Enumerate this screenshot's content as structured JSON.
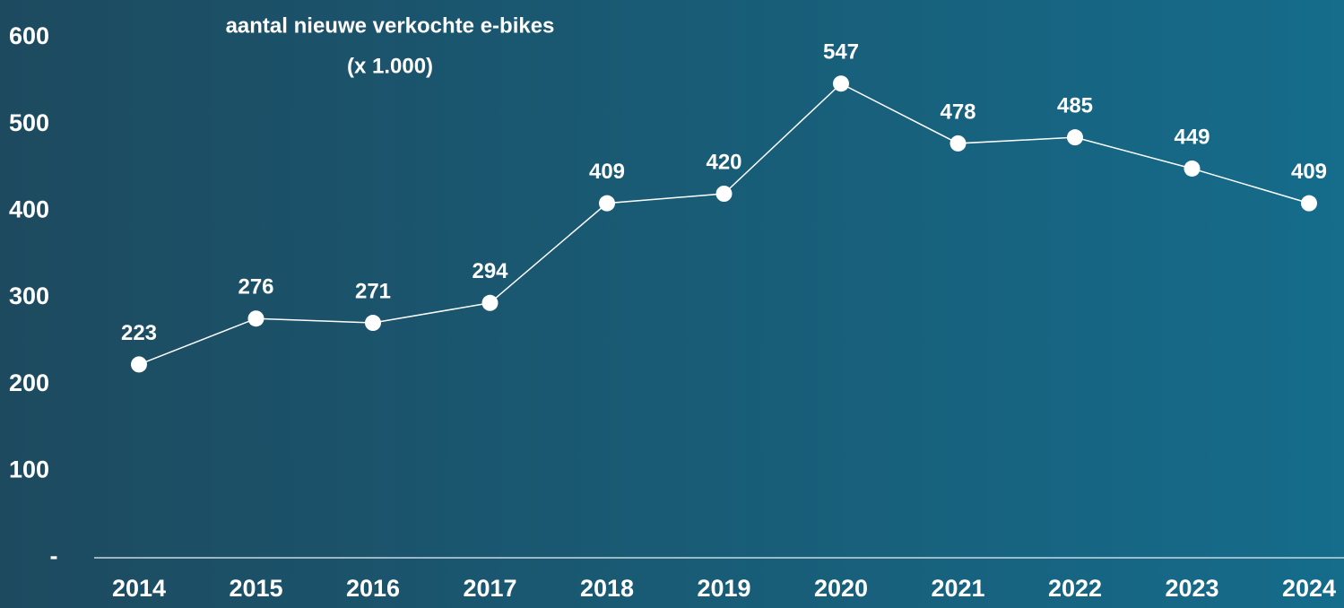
{
  "chart_data": {
    "type": "line",
    "title": "aantal nieuwe verkochte e-bikes",
    "subtitle": "(x 1.000)",
    "categories": [
      "2014",
      "2015",
      "2016",
      "2017",
      "2018",
      "2019",
      "2020",
      "2021",
      "2022",
      "2023",
      "2024"
    ],
    "values": [
      223,
      276,
      271,
      294,
      409,
      420,
      547,
      478,
      485,
      449,
      409
    ],
    "color": "#ffffff",
    "ylim": [
      0,
      600
    ],
    "yticks": [
      {
        "value": 0,
        "label": "-"
      },
      100,
      200,
      300,
      400,
      500,
      600
    ]
  }
}
